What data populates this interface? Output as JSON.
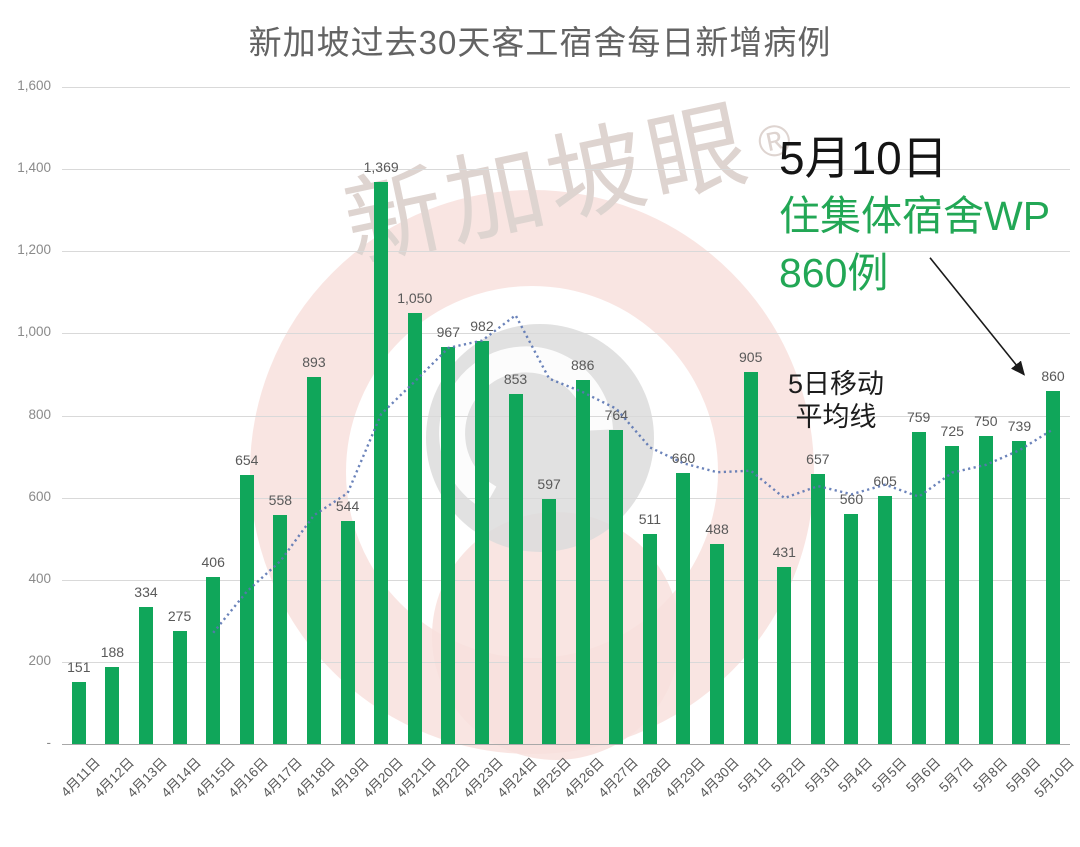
{
  "title": "新加坡过去30天客工宿舍每日新增病例",
  "watermark": {
    "text": "新加坡眼",
    "registered": "®"
  },
  "annotation": {
    "line1": "5月10日",
    "line2": "住集体宿舍WP",
    "line3": "860例"
  },
  "ma_label": {
    "line1": "5日移动",
    "line2": "平均线"
  },
  "y_axis": {
    "ticks": [
      {
        "label": "1,600",
        "value": 1600
      },
      {
        "label": "1,400",
        "value": 1400
      },
      {
        "label": "1,200",
        "value": 1200
      },
      {
        "label": "1,000",
        "value": 1000
      },
      {
        "label": "800",
        "value": 800
      },
      {
        "label": "600",
        "value": 600
      },
      {
        "label": "400",
        "value": 400
      },
      {
        "label": "200",
        "value": 200
      },
      {
        "label": "-",
        "value": 0
      }
    ]
  },
  "colors": {
    "bar_green": "#10a65a",
    "ma_line_blue": "#5b76b2",
    "annotation_green": "#22a755",
    "title_gray": "#636363",
    "label_gray": "#595959",
    "gridline_gray": "#d9d9d9",
    "watermark_pink": "#f8e0dd",
    "watermark_gray": "#dcdcdc"
  },
  "chart_data": {
    "type": "bar",
    "title": "新加坡过去30天客工宿舍每日新增病例",
    "categories": [
      "4月11日",
      "4月12日",
      "4月13日",
      "4月14日",
      "4月15日",
      "4月16日",
      "4月17日",
      "4月18日",
      "4月19日",
      "4月20日",
      "4月21日",
      "4月22日",
      "4月23日",
      "4月24日",
      "4月25日",
      "4月26日",
      "4月27日",
      "4月28日",
      "4月29日",
      "4月30日",
      "5月1日",
      "5月2日",
      "5月3日",
      "5月4日",
      "5月5日",
      "5月6日",
      "5月7日",
      "5月8日",
      "5月9日",
      "5月10日"
    ],
    "values": [
      151,
      188,
      334,
      275,
      406,
      654,
      558,
      893,
      544,
      1369,
      1050,
      967,
      982,
      853,
      597,
      886,
      764,
      511,
      660,
      488,
      905,
      431,
      657,
      560,
      605,
      759,
      725,
      750,
      739,
      860
    ],
    "value_labels": [
      "151",
      "188",
      "334",
      "275",
      "406",
      "654",
      "558",
      "893",
      "544",
      "1,369",
      "1,050",
      "967",
      "982",
      "853",
      "597",
      "886",
      "764",
      "511",
      "660",
      "488",
      "905",
      "431",
      "657",
      "560",
      "605",
      "759",
      "725",
      "750",
      "739",
      "860"
    ],
    "series": [
      {
        "name": "每日新增病例",
        "type": "bar",
        "values": [
          151,
          188,
          334,
          275,
          406,
          654,
          558,
          893,
          544,
          1369,
          1050,
          967,
          982,
          853,
          597,
          886,
          764,
          511,
          660,
          488,
          905,
          431,
          657,
          560,
          605,
          759,
          725,
          750,
          739,
          860
        ]
      },
      {
        "name": "5日移动平均线",
        "type": "line",
        "values": [
          null,
          null,
          null,
          null,
          270.8,
          371.4,
          445.4,
          557.2,
          611,
          803.6,
          882.8,
          964.6,
          982.4,
          1044.2,
          889.8,
          857,
          816.4,
          722.2,
          683.6,
          661.8,
          665.6,
          599,
          628.2,
          608.2,
          631.6,
          602.4,
          661.2,
          679.8,
          715.6,
          766.6
        ]
      }
    ],
    "xlabel": "",
    "ylabel": "",
    "ylim": [
      0,
      1600
    ],
    "y_step": 200,
    "grid": true,
    "legend_position": "none"
  }
}
